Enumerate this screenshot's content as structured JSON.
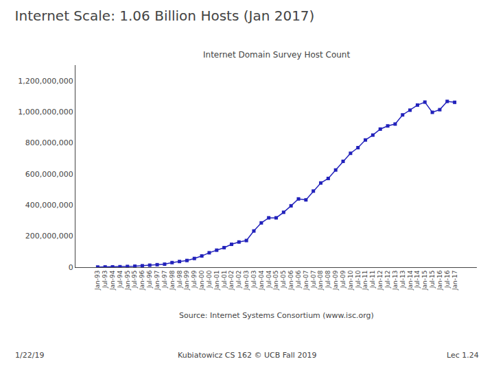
{
  "chart_data": {
    "type": "line",
    "title": "Internet Scale: 1.06 Billion Hosts (Jan 2017)",
    "subtitle": "Internet Domain Survey Host Count",
    "annotations": [
      "Source: Internet Systems Consortium (www.isc.org)",
      "1/22/19",
      "Kubiatowicz CS 162 © UCB Fall 2019",
      "Lec 1.24"
    ],
    "categories": [
      "Jan-93",
      "Jul-93",
      "Jan-94",
      "Jul-94",
      "Jan-95",
      "Jul-95",
      "Jan-96",
      "Jul-96",
      "Jan-97",
      "Jul-97",
      "Jan-98",
      "Jul-98",
      "Jan-99",
      "Jul-99",
      "Jan-00",
      "Jul-00",
      "Jan-01",
      "Jul-01",
      "Jan-02",
      "Jul-02",
      "Jan-03",
      "Jul-03",
      "Jan-04",
      "Jul-04",
      "Jan-05",
      "Jul-05",
      "Jan-06",
      "Jul-06",
      "Jan-07",
      "Jul-07",
      "Jan-08",
      "Jul-08",
      "Jan-09",
      "Jul-09",
      "Jan-10",
      "Jul-10",
      "Jan-11",
      "Jul-11",
      "Jan-12",
      "Jul-12",
      "Jan-13",
      "Jul-13",
      "Jan-14",
      "Jul-14",
      "Jan-15",
      "Jul-15",
      "Jan-16",
      "Jul-16",
      "Jan-17"
    ],
    "values": [
      1313000,
      1776000,
      2217000,
      3212000,
      4852000,
      6642000,
      9472000,
      12881000,
      16146000,
      19540000,
      29670000,
      36739000,
      43230000,
      56218000,
      72398000,
      93047000,
      109574000,
      125888000,
      147344000,
      162128000,
      171638000,
      233101660,
      285139107,
      317646084,
      317646084,
      353284187,
      394991609,
      439286364,
      433193199,
      489774269,
      541677360,
      570937778,
      625226456,
      681064561,
      732740444,
      768913036,
      818374269,
      849869781,
      888239420,
      908874254,
      920863127,
      979654473,
      1010058651,
      1042918819,
      1061786339,
      996230693,
      1013188685,
      1066473540,
      1060620052
    ],
    "color": "#2222bb",
    "marker": "square",
    "grid": false,
    "ylim": [
      0,
      1300000000
    ],
    "yticks": [
      0,
      {
        "value": 200000000,
        "label": "200,000,000"
      },
      {
        "value": 400000000,
        "label": "400,000,000"
      },
      {
        "value": 600000000,
        "label": "600,000,000"
      },
      {
        "value": 800000000,
        "label": "800,000,000"
      },
      {
        "value": 1000000000,
        "label": "1,000,000,000"
      },
      {
        "value": 1200000000,
        "label": "1,200,000,000"
      }
    ]
  }
}
